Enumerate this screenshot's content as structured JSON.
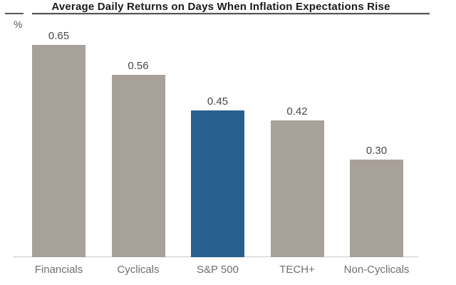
{
  "title": "Average Daily Returns on Days When Inflation Expectations Rise",
  "unit_label": "%",
  "colors": {
    "bar": "#a8a19a",
    "highlight": "#26608e",
    "title_text": "#1b1b1b",
    "value_label": "#474747",
    "category_label": "#6f6f6f",
    "axis_line": "#c9c9c9",
    "underline": "#585858"
  },
  "chart_data": {
    "type": "bar",
    "title": "Average Daily Returns on Days When Inflation Expectations Rise",
    "categories": [
      "Financials",
      "Cyclicals",
      "S&P 500",
      "TECH+",
      "Non-Cyclicals"
    ],
    "values": [
      0.65,
      0.56,
      0.45,
      0.42,
      0.3
    ],
    "value_labels": [
      "0.65",
      "0.56",
      "0.45",
      "0.42",
      "0.30"
    ],
    "highlight_index": 2,
    "highlight_category": "S&P 500",
    "xlabel": "",
    "ylabel": "%",
    "ylim": [
      0,
      0.7
    ],
    "grid": false,
    "legend_position": "none"
  }
}
